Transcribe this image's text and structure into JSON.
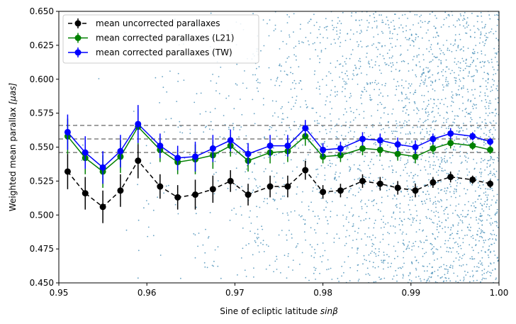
{
  "chart_data": {
    "type": "line",
    "xlabel_main": "Sine of ecliptic latitude ",
    "xlabel_math": "sinβ",
    "ylabel_main": "Weighted mean parallax ",
    "ylabel_math": "[μas]",
    "xlim": [
      0.95,
      1.0
    ],
    "ylim": [
      0.45,
      0.65
    ],
    "xticks": [
      "0.95",
      "0.96",
      "0.97",
      "0.98",
      "0.99",
      "1.00"
    ],
    "xtick_values": [
      0.95,
      0.96,
      0.97,
      0.98,
      0.99,
      1.0
    ],
    "yticks": [
      "0.450",
      "0.475",
      "0.500",
      "0.525",
      "0.550",
      "0.575",
      "0.600",
      "0.625",
      "0.650"
    ],
    "ytick_values": [
      0.45,
      0.475,
      0.5,
      0.525,
      0.55,
      0.575,
      0.6,
      0.625,
      0.65
    ],
    "reference_lines": [
      0.546,
      0.556,
      0.566
    ],
    "x": [
      0.951,
      0.953,
      0.955,
      0.957,
      0.959,
      0.9615,
      0.9635,
      0.9655,
      0.9675,
      0.9695,
      0.9715,
      0.974,
      0.976,
      0.978,
      0.98,
      0.982,
      0.9845,
      0.9865,
      0.9885,
      0.9905,
      0.9925,
      0.9945,
      0.997,
      0.999
    ],
    "series": [
      {
        "name": "mean uncorrected parallaxes",
        "color": "#000000",
        "dashed": true,
        "values": [
          0.532,
          0.516,
          0.506,
          0.518,
          0.54,
          0.521,
          0.513,
          0.515,
          0.519,
          0.525,
          0.515,
          0.521,
          0.521,
          0.533,
          0.517,
          0.518,
          0.525,
          0.523,
          0.52,
          0.518,
          0.524,
          0.528,
          0.526,
          0.523
        ],
        "errors": [
          0.013,
          0.012,
          0.012,
          0.012,
          0.013,
          0.009,
          0.009,
          0.011,
          0.01,
          0.008,
          0.008,
          0.008,
          0.008,
          0.007,
          0.005,
          0.005,
          0.005,
          0.005,
          0.005,
          0.005,
          0.004,
          0.004,
          0.003,
          0.003
        ]
      },
      {
        "name": "mean corrected parallaxes (L21)",
        "color": "#008000",
        "dashed": false,
        "values": [
          0.558,
          0.542,
          0.532,
          0.543,
          0.565,
          0.548,
          0.539,
          0.541,
          0.544,
          0.551,
          0.54,
          0.546,
          0.547,
          0.558,
          0.543,
          0.544,
          0.549,
          0.548,
          0.545,
          0.543,
          0.549,
          0.553,
          0.551,
          0.548
        ],
        "errors": [
          0.013,
          0.012,
          0.012,
          0.012,
          0.013,
          0.009,
          0.009,
          0.011,
          0.01,
          0.008,
          0.008,
          0.008,
          0.008,
          0.007,
          0.005,
          0.005,
          0.005,
          0.005,
          0.005,
          0.005,
          0.004,
          0.004,
          0.003,
          0.003
        ]
      },
      {
        "name": "mean corrected parallaxes (TW)",
        "color": "#0000ff",
        "dashed": false,
        "values": [
          0.561,
          0.546,
          0.535,
          0.547,
          0.567,
          0.551,
          0.542,
          0.543,
          0.549,
          0.555,
          0.545,
          0.551,
          0.551,
          0.564,
          0.548,
          0.549,
          0.556,
          0.555,
          0.552,
          0.55,
          0.556,
          0.56,
          0.558,
          0.554
        ],
        "errors": [
          0.013,
          0.012,
          0.012,
          0.012,
          0.014,
          0.009,
          0.009,
          0.011,
          0.01,
          0.008,
          0.008,
          0.008,
          0.008,
          0.006,
          0.005,
          0.005,
          0.005,
          0.005,
          0.005,
          0.005,
          0.004,
          0.004,
          0.003,
          0.003
        ]
      }
    ],
    "background_scatter": {
      "color": "#4a90b8",
      "count": 2600,
      "density_profile": "increasing toward sinβ = 1.00"
    }
  }
}
